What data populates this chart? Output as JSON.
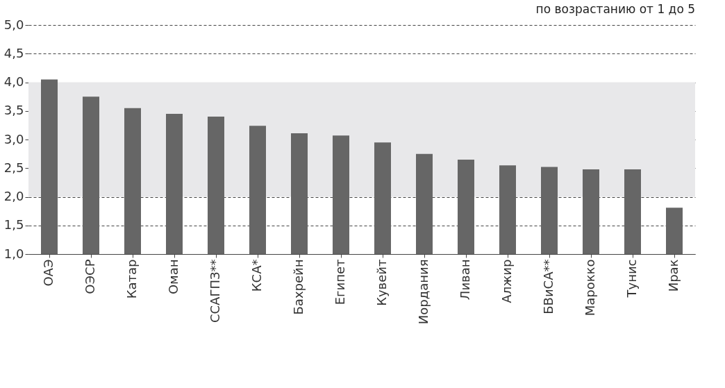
{
  "chart_data": {
    "type": "bar",
    "title": "по возрастанию от 1 до 5",
    "categories": [
      "ОАЭ",
      "ОЭСР",
      "Катар",
      "Оман",
      "ССАГПЗ**",
      "КСА*",
      "Бахрейн",
      "Египет",
      "Кувейт",
      "Иордания",
      "Ливан",
      "Алжир",
      "БВиСА**",
      "Марокко",
      "Тунис",
      "Ирак"
    ],
    "values": [
      4.05,
      3.75,
      3.55,
      3.45,
      3.4,
      3.24,
      3.11,
      3.07,
      2.95,
      2.75,
      2.65,
      2.55,
      2.52,
      2.48,
      2.48,
      1.81
    ],
    "color": "#666666",
    "ylim": [
      1,
      5
    ],
    "yticks": [
      {
        "value": 1,
        "label": "1,0"
      },
      {
        "value": 1.5,
        "label": "1,5"
      },
      {
        "value": 2,
        "label": "2,0"
      },
      {
        "value": 2.5,
        "label": "2,5"
      },
      {
        "value": 3,
        "label": "3,0"
      },
      {
        "value": 3.5,
        "label": "3,5"
      },
      {
        "value": 4,
        "label": "4,0"
      },
      {
        "value": 4.5,
        "label": "4,5"
      },
      {
        "value": 5,
        "label": "5,0"
      }
    ],
    "bands": [
      {
        "axis": "y",
        "from": 2,
        "to": 4,
        "color": "#e8e8ea"
      }
    ],
    "grid": "y"
  }
}
